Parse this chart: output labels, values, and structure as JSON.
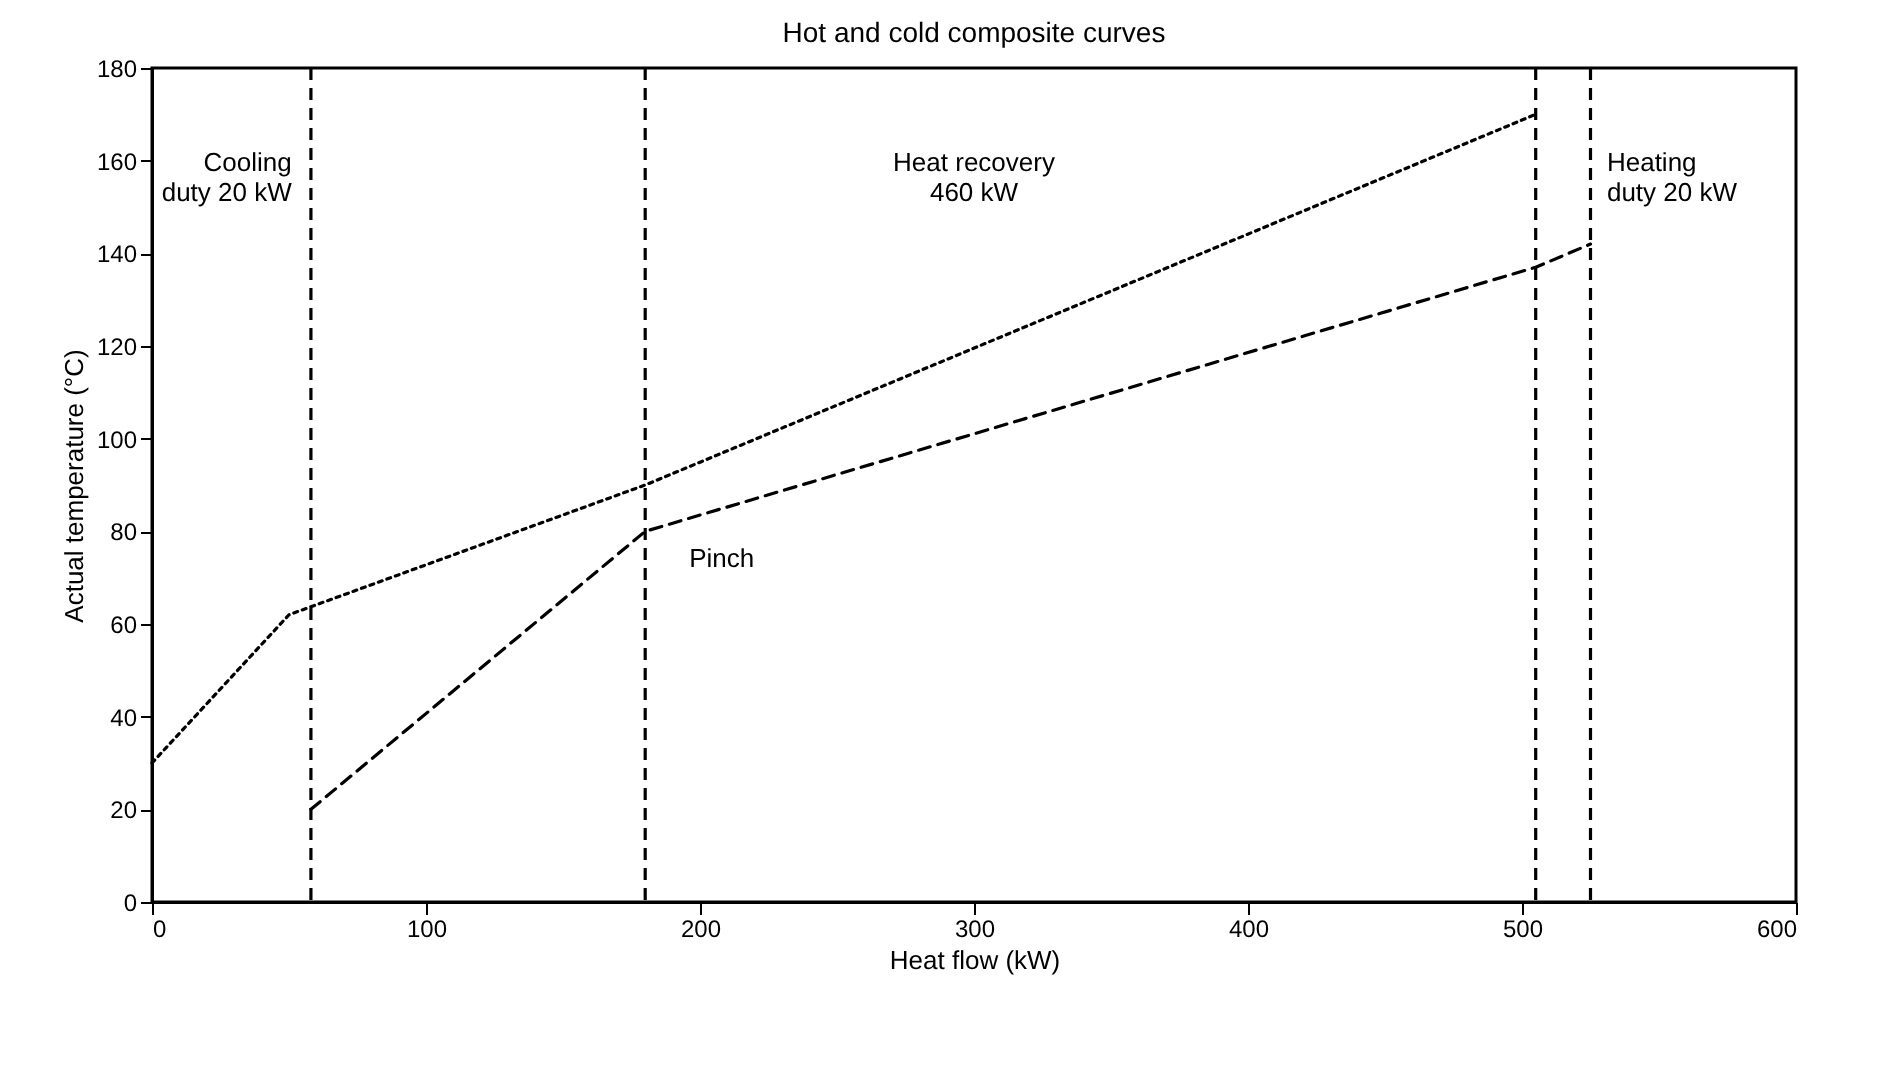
{
  "chart_data": {
    "type": "line",
    "title": "Hot and cold composite curves",
    "xlabel": "Heat flow (kW)",
    "ylabel": "Actual temperature (°C)",
    "xlim": [
      0,
      600
    ],
    "xticks": [
      0,
      100,
      200,
      300,
      400,
      500,
      600
    ],
    "ylim": [
      0,
      180
    ],
    "yticks": [
      0,
      20,
      40,
      60,
      80,
      100,
      120,
      140,
      160,
      180
    ],
    "grid": false,
    "series": [
      {
        "color": "#000000",
        "line_style": "dotted",
        "x": [
          0,
          50,
          180,
          505
        ],
        "values": [
          30,
          62,
          90,
          170
        ]
      },
      {
        "color": "#000000",
        "line_style": "dashed",
        "x": [
          58,
          180,
          505,
          525
        ],
        "values": [
          20,
          80,
          137,
          142
        ]
      }
    ],
    "ref_lines": [
      {
        "axis": "x",
        "value": 58,
        "line_style": "dashed"
      },
      {
        "axis": "x",
        "value": 180,
        "line_style": "dashed"
      },
      {
        "axis": "x",
        "value": 505,
        "line_style": "dashed"
      },
      {
        "axis": "x",
        "value": 525,
        "line_style": "dashed"
      }
    ],
    "annotations": [
      "Cooling\nduty 20 kW",
      "Heat recovery\n460 kW",
      "Heating\nduty 20 kW",
      {
        "text": "Pinch",
        "x": 180,
        "y": 80
      }
    ]
  }
}
